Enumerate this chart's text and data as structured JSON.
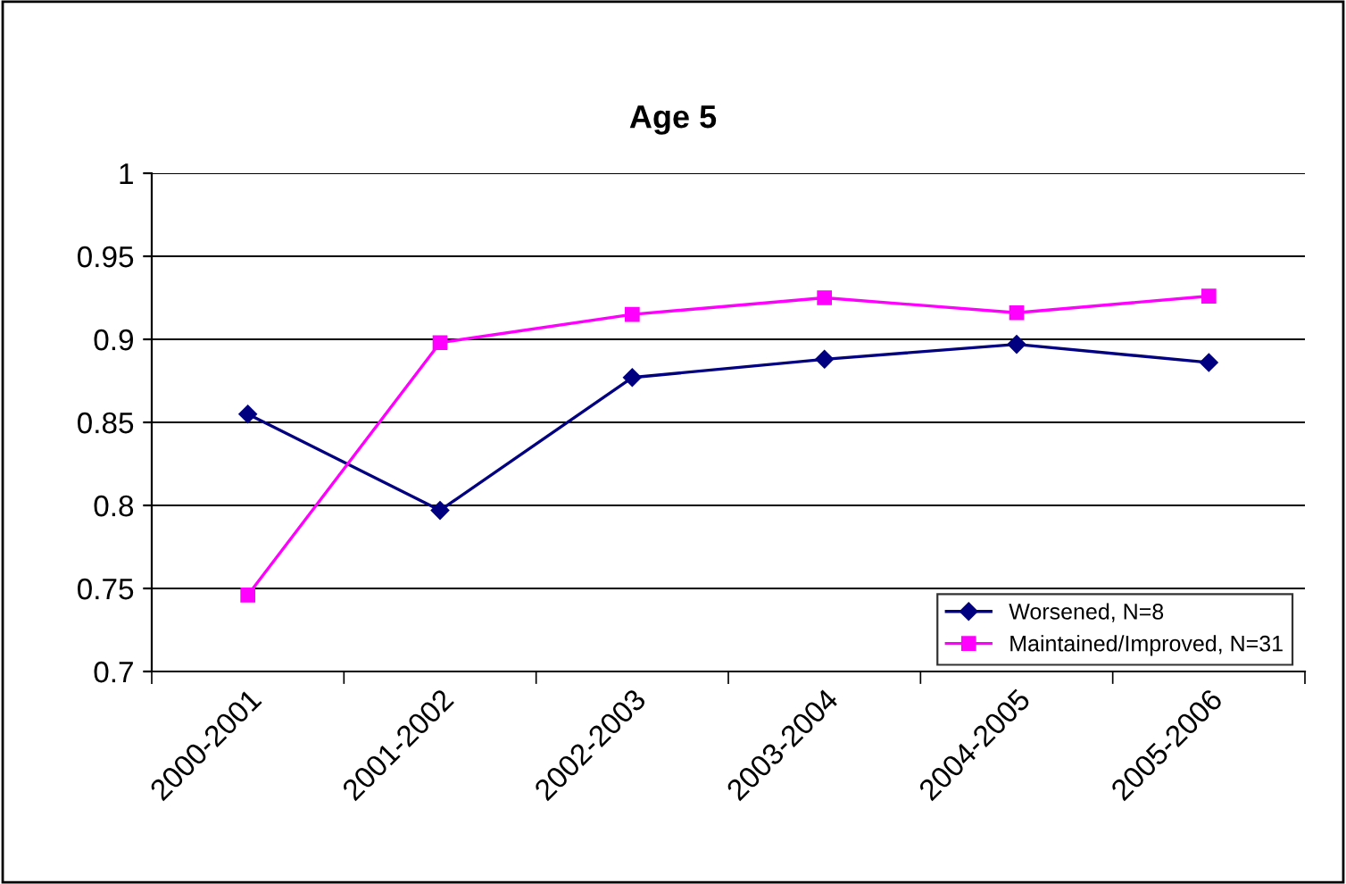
{
  "chart_data": {
    "type": "line",
    "title": "Age 5",
    "categories": [
      "2000-2001",
      "2001-2002",
      "2002-2003",
      "2003-2004",
      "2004-2005",
      "2005-2006"
    ],
    "series": [
      {
        "name": "Worsened, N=8",
        "color": "#000080",
        "marker": "diamond",
        "values": [
          0.855,
          0.797,
          0.877,
          0.888,
          0.897,
          0.886
        ]
      },
      {
        "name": "Maintained/Improved, N=31",
        "color": "#ff00ff",
        "marker": "square",
        "values": [
          0.746,
          0.898,
          0.915,
          0.925,
          0.916,
          0.926
        ]
      }
    ],
    "ylim": [
      0.7,
      1
    ],
    "yticks": [
      {
        "value": 0.7,
        "label": "0.7"
      },
      {
        "value": 0.75,
        "label": "0.75"
      },
      {
        "value": 0.8,
        "label": "0.8"
      },
      {
        "value": 0.85,
        "label": "0.85"
      },
      {
        "value": 0.9,
        "label": "0.9"
      },
      {
        "value": 0.95,
        "label": "0.95"
      },
      {
        "value": 1,
        "label": "1"
      }
    ],
    "grid": "y",
    "legend": "bottom right"
  }
}
